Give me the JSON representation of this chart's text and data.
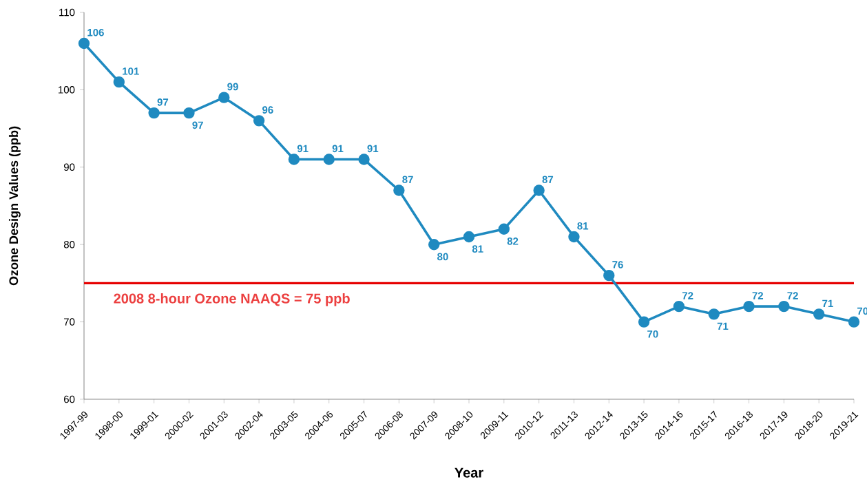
{
  "chart_data": {
    "type": "line",
    "xlabel": "Year",
    "ylabel": "Ozone Design Values (ppb)",
    "categories": [
      "1997-99",
      "1998-00",
      "1999-01",
      "2000-02",
      "2001-03",
      "2002-04",
      "2003-05",
      "2004-06",
      "2005-07",
      "2006-08",
      "2007-09",
      "2008-10",
      "2009-11",
      "2010-12",
      "2011-13",
      "2012-14",
      "2013-15",
      "2014-16",
      "2015-17",
      "2016-18",
      "2017-19",
      "2018-20",
      "2019-21"
    ],
    "values": [
      106,
      101,
      97,
      97,
      99,
      96,
      91,
      91,
      91,
      87,
      80,
      81,
      82,
      87,
      81,
      76,
      70,
      72,
      71,
      72,
      72,
      71,
      70
    ],
    "color": "#1f8ac0",
    "marker": "circle",
    "line_style": "solid",
    "data_labels": true,
    "grid": false,
    "ylim": [
      60,
      110
    ],
    "yticks": [
      60,
      70,
      80,
      90,
      100,
      110
    ],
    "ref_lines": [
      {
        "axis": "y",
        "value": 75,
        "label": "2008 8-hour Ozone NAAQS = 75 ppb",
        "color": "#e60000"
      }
    ]
  }
}
